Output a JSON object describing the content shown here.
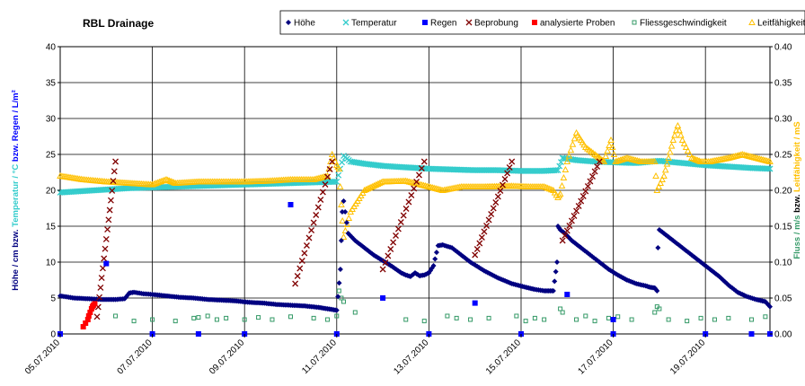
{
  "chart_data": {
    "type": "scatter",
    "title": "RBL Drainage",
    "ylabel_left": {
      "parts": [
        {
          "text": "Höhe / cm bzw. ",
          "color": "#000080"
        },
        {
          "text": "Temperatur / °C",
          "color": "#33CCCC"
        },
        {
          "text": " bzw. Regen / L/m²",
          "color": "#0000FF"
        }
      ]
    },
    "ylabel_right": {
      "parts": [
        {
          "text": "Fluss / m/s",
          "color": "#339966"
        },
        {
          "text": " bzw. ",
          "color": "#000000"
        },
        {
          "text": "Leitfähigkeit / mS",
          "color": "#FFC000"
        }
      ]
    },
    "x_ticks": [
      "05.07.2010",
      "07.07.2010",
      "09.07.2010",
      "11.07.2010",
      "13.07.2010",
      "15.07.2010",
      "17.07.2010",
      "19.07.2010"
    ],
    "xlim_days": [
      0,
      15.4
    ],
    "ylim_left": [
      0,
      40
    ],
    "yticks_left": [
      "0",
      "5",
      "10",
      "15",
      "20",
      "25",
      "30",
      "35",
      "40"
    ],
    "ylim_right": [
      0,
      0.4
    ],
    "yticks_right": [
      "0.00",
      "0.05",
      "0.10",
      "0.15",
      "0.20",
      "0.25",
      "0.30",
      "0.35",
      "0.40"
    ],
    "grid": true,
    "legend_position": "top",
    "series": [
      {
        "name": "Höhe",
        "axis": "left",
        "color": "#000080",
        "marker": "diamond",
        "points": [
          [
            0,
            5.3
          ],
          [
            0.3,
            5.0
          ],
          [
            0.6,
            4.9
          ],
          [
            0.9,
            4.8
          ],
          [
            1.2,
            4.8
          ],
          [
            1.4,
            4.9
          ],
          [
            1.5,
            5.7
          ],
          [
            1.6,
            5.8
          ],
          [
            1.8,
            5.6
          ],
          [
            2.0,
            5.5
          ],
          [
            2.3,
            5.3
          ],
          [
            2.6,
            5.1
          ],
          [
            2.9,
            5.0
          ],
          [
            3.2,
            4.8
          ],
          [
            3.5,
            4.7
          ],
          [
            3.8,
            4.6
          ],
          [
            4.1,
            4.4
          ],
          [
            4.4,
            4.3
          ],
          [
            4.7,
            4.1
          ],
          [
            5.0,
            4.0
          ],
          [
            5.3,
            3.9
          ],
          [
            5.6,
            3.7
          ],
          [
            5.8,
            3.5
          ],
          [
            6.0,
            3.3
          ],
          [
            6.08,
            9.0
          ],
          [
            6.12,
            17.0
          ],
          [
            6.15,
            18.5
          ],
          [
            6.25,
            14.0
          ],
          [
            6.4,
            13.0
          ],
          [
            6.6,
            12.0
          ],
          [
            6.8,
            11.0
          ],
          [
            7.0,
            10.2
          ],
          [
            7.2,
            9.4
          ],
          [
            7.4,
            8.5
          ],
          [
            7.5,
            8.2
          ],
          [
            7.6,
            8.0
          ],
          [
            7.7,
            8.5
          ],
          [
            7.8,
            8.1
          ],
          [
            7.9,
            8.2
          ],
          [
            8.0,
            8.5
          ],
          [
            8.1,
            9.5
          ],
          [
            8.2,
            12.3
          ],
          [
            8.3,
            12.4
          ],
          [
            8.5,
            12.0
          ],
          [
            8.7,
            11.0
          ],
          [
            8.9,
            10.0
          ],
          [
            9.2,
            8.8
          ],
          [
            9.5,
            7.8
          ],
          [
            9.8,
            7.0
          ],
          [
            10.1,
            6.5
          ],
          [
            10.3,
            6.2
          ],
          [
            10.5,
            6.0
          ],
          [
            10.6,
            6.0
          ],
          [
            10.7,
            6.0
          ],
          [
            10.78,
            10.0
          ],
          [
            10.8,
            15.0
          ],
          [
            10.85,
            14.5
          ],
          [
            10.95,
            14.0
          ],
          [
            11.1,
            13.0
          ],
          [
            11.3,
            12.0
          ],
          [
            11.5,
            11.0
          ],
          [
            11.7,
            10.0
          ],
          [
            11.9,
            9.0
          ],
          [
            12.1,
            8.2
          ],
          [
            12.3,
            7.5
          ],
          [
            12.5,
            7.0
          ],
          [
            12.7,
            6.7
          ],
          [
            12.8,
            6.5
          ],
          [
            12.9,
            6.4
          ],
          [
            12.95,
            6.0
          ],
          [
            12.97,
            12.0
          ],
          [
            13.0,
            14.5
          ],
          [
            13.1,
            14.0
          ],
          [
            13.3,
            13.0
          ],
          [
            13.5,
            12.0
          ],
          [
            13.7,
            11.0
          ],
          [
            13.9,
            10.0
          ],
          [
            14.1,
            9.0
          ],
          [
            14.3,
            8.0
          ],
          [
            14.5,
            6.8
          ],
          [
            14.7,
            5.8
          ],
          [
            14.9,
            5.2
          ],
          [
            15.1,
            4.8
          ],
          [
            15.3,
            4.5
          ],
          [
            15.4,
            3.8
          ]
        ]
      },
      {
        "name": "Temperatur",
        "axis": "left",
        "color": "#33CCCC",
        "marker": "x",
        "points": [
          [
            0,
            19.7
          ],
          [
            0.5,
            19.9
          ],
          [
            1.0,
            20.1
          ],
          [
            1.5,
            20.3
          ],
          [
            2.0,
            20.4
          ],
          [
            2.5,
            20.5
          ],
          [
            3.0,
            20.6
          ],
          [
            3.5,
            20.7
          ],
          [
            4.0,
            20.8
          ],
          [
            4.5,
            20.9
          ],
          [
            5.0,
            21.0
          ],
          [
            5.5,
            21.1
          ],
          [
            6.0,
            21.2
          ],
          [
            6.15,
            24.8
          ],
          [
            6.3,
            24.0
          ],
          [
            6.6,
            23.7
          ],
          [
            7.0,
            23.4
          ],
          [
            7.5,
            23.2
          ],
          [
            8.0,
            23.0
          ],
          [
            8.5,
            22.9
          ],
          [
            9.0,
            22.8
          ],
          [
            9.5,
            22.8
          ],
          [
            10.0,
            22.7
          ],
          [
            10.5,
            22.7
          ],
          [
            10.8,
            22.8
          ],
          [
            10.9,
            24.5
          ],
          [
            11.2,
            24.2
          ],
          [
            11.6,
            24.0
          ],
          [
            12.0,
            23.9
          ],
          [
            12.5,
            23.8
          ],
          [
            13.0,
            24.1
          ],
          [
            13.5,
            23.8
          ],
          [
            14.0,
            23.5
          ],
          [
            14.5,
            23.3
          ],
          [
            15.0,
            23.1
          ],
          [
            15.4,
            23.0
          ]
        ]
      },
      {
        "name": "Regen",
        "axis": "left",
        "color": "#0000FF",
        "marker": "square",
        "points": [
          [
            0,
            0
          ],
          [
            2.0,
            0
          ],
          [
            3.0,
            0
          ],
          [
            4.0,
            0
          ],
          [
            6.0,
            0
          ],
          [
            8.0,
            0
          ],
          [
            10.0,
            0
          ],
          [
            12.0,
            0
          ],
          [
            14.0,
            0
          ],
          [
            15.0,
            0
          ],
          [
            15.4,
            0
          ],
          [
            1.0,
            9.8
          ],
          [
            5.0,
            18.0
          ],
          [
            7.0,
            5.0
          ],
          [
            9.0,
            4.3
          ],
          [
            11.0,
            5.5
          ],
          [
            12.0,
            2.0
          ]
        ]
      },
      {
        "name": "Beprobung",
        "axis": "left",
        "color": "#800000",
        "marker": "x",
        "style": "ramps",
        "ramps": [
          [
            0.8,
            2.4,
            1.2,
            24.0
          ],
          [
            5.1,
            7.0,
            5.9,
            24.0
          ],
          [
            7.0,
            9.0,
            7.9,
            24.0
          ],
          [
            9.0,
            11.0,
            9.8,
            24.0
          ],
          [
            10.9,
            13.0,
            11.7,
            24.0
          ]
        ]
      },
      {
        "name": "analysierte Proben",
        "axis": "left",
        "color": "#FF0000",
        "marker": "square",
        "points": [
          [
            0.5,
            1.0
          ],
          [
            0.55,
            1.5
          ],
          [
            0.6,
            2.0
          ],
          [
            0.62,
            2.5
          ],
          [
            0.65,
            3.0
          ],
          [
            0.68,
            3.5
          ],
          [
            0.7,
            3.8
          ],
          [
            0.72,
            4.0
          ],
          [
            0.75,
            4.2
          ]
        ]
      },
      {
        "name": "Fliessgeschwindigkeit",
        "axis": "right",
        "color": "#339966",
        "marker": "square-open",
        "points": [
          [
            1.2,
            0.025
          ],
          [
            1.6,
            0.018
          ],
          [
            2.0,
            0.02
          ],
          [
            2.5,
            0.018
          ],
          [
            2.9,
            0.022
          ],
          [
            3.0,
            0.023
          ],
          [
            3.2,
            0.025
          ],
          [
            3.4,
            0.02
          ],
          [
            3.6,
            0.022
          ],
          [
            4.0,
            0.02
          ],
          [
            4.3,
            0.023
          ],
          [
            4.6,
            0.02
          ],
          [
            5.0,
            0.024
          ],
          [
            5.5,
            0.022
          ],
          [
            5.8,
            0.02
          ],
          [
            6.0,
            0.025
          ],
          [
            6.05,
            0.06
          ],
          [
            6.1,
            0.05
          ],
          [
            6.15,
            0.045
          ],
          [
            6.4,
            0.03
          ],
          [
            7.5,
            0.02
          ],
          [
            7.9,
            0.018
          ],
          [
            8.4,
            0.025
          ],
          [
            8.6,
            0.022
          ],
          [
            8.9,
            0.02
          ],
          [
            9.3,
            0.022
          ],
          [
            9.9,
            0.025
          ],
          [
            10.1,
            0.018
          ],
          [
            10.3,
            0.022
          ],
          [
            10.5,
            0.02
          ],
          [
            10.85,
            0.035
          ],
          [
            10.9,
            0.03
          ],
          [
            11.2,
            0.02
          ],
          [
            11.4,
            0.025
          ],
          [
            11.6,
            0.018
          ],
          [
            11.9,
            0.022
          ],
          [
            12.1,
            0.024
          ],
          [
            12.4,
            0.02
          ],
          [
            12.9,
            0.03
          ],
          [
            12.95,
            0.038
          ],
          [
            13.0,
            0.035
          ],
          [
            13.2,
            0.02
          ],
          [
            13.6,
            0.018
          ],
          [
            13.9,
            0.022
          ],
          [
            14.2,
            0.02
          ],
          [
            14.5,
            0.022
          ],
          [
            15.0,
            0.02
          ],
          [
            15.3,
            0.024
          ]
        ]
      },
      {
        "name": "Leitfähigkeit",
        "axis": "right",
        "color": "#FFC000",
        "marker": "triangle",
        "points": [
          [
            0,
            0.22
          ],
          [
            0.5,
            0.215
          ],
          [
            1.0,
            0.212
          ],
          [
            1.5,
            0.21
          ],
          [
            2.0,
            0.208
          ],
          [
            2.3,
            0.215
          ],
          [
            2.5,
            0.21
          ],
          [
            3.0,
            0.212
          ],
          [
            3.5,
            0.212
          ],
          [
            4.0,
            0.212
          ],
          [
            4.5,
            0.213
          ],
          [
            5.0,
            0.215
          ],
          [
            5.5,
            0.215
          ],
          [
            5.8,
            0.22
          ],
          [
            5.9,
            0.25
          ],
          [
            6.0,
            0.235
          ],
          [
            6.05,
            0.23
          ],
          [
            6.1,
            0.18
          ],
          [
            6.15,
            0.135
          ],
          [
            6.3,
            0.17
          ],
          [
            6.6,
            0.2
          ],
          [
            7.0,
            0.212
          ],
          [
            7.5,
            0.213
          ],
          [
            8.0,
            0.205
          ],
          [
            8.3,
            0.2
          ],
          [
            8.7,
            0.205
          ],
          [
            9.2,
            0.205
          ],
          [
            9.8,
            0.206
          ],
          [
            10.2,
            0.205
          ],
          [
            10.5,
            0.205
          ],
          [
            10.7,
            0.2
          ],
          [
            10.8,
            0.19
          ],
          [
            10.85,
            0.195
          ],
          [
            11.0,
            0.24
          ],
          [
            11.2,
            0.28
          ],
          [
            11.4,
            0.26
          ],
          [
            11.6,
            0.25
          ],
          [
            11.8,
            0.24
          ],
          [
            11.95,
            0.27
          ],
          [
            12.05,
            0.24
          ],
          [
            12.3,
            0.245
          ],
          [
            12.6,
            0.24
          ],
          [
            12.9,
            0.24
          ],
          [
            12.95,
            0.2
          ],
          [
            13.1,
            0.22
          ],
          [
            13.3,
            0.27
          ],
          [
            13.4,
            0.29
          ],
          [
            13.5,
            0.27
          ],
          [
            13.7,
            0.245
          ],
          [
            13.9,
            0.24
          ],
          [
            14.1,
            0.24
          ],
          [
            14.5,
            0.245
          ],
          [
            14.8,
            0.25
          ],
          [
            15.1,
            0.245
          ],
          [
            15.4,
            0.24
          ]
        ]
      }
    ]
  }
}
